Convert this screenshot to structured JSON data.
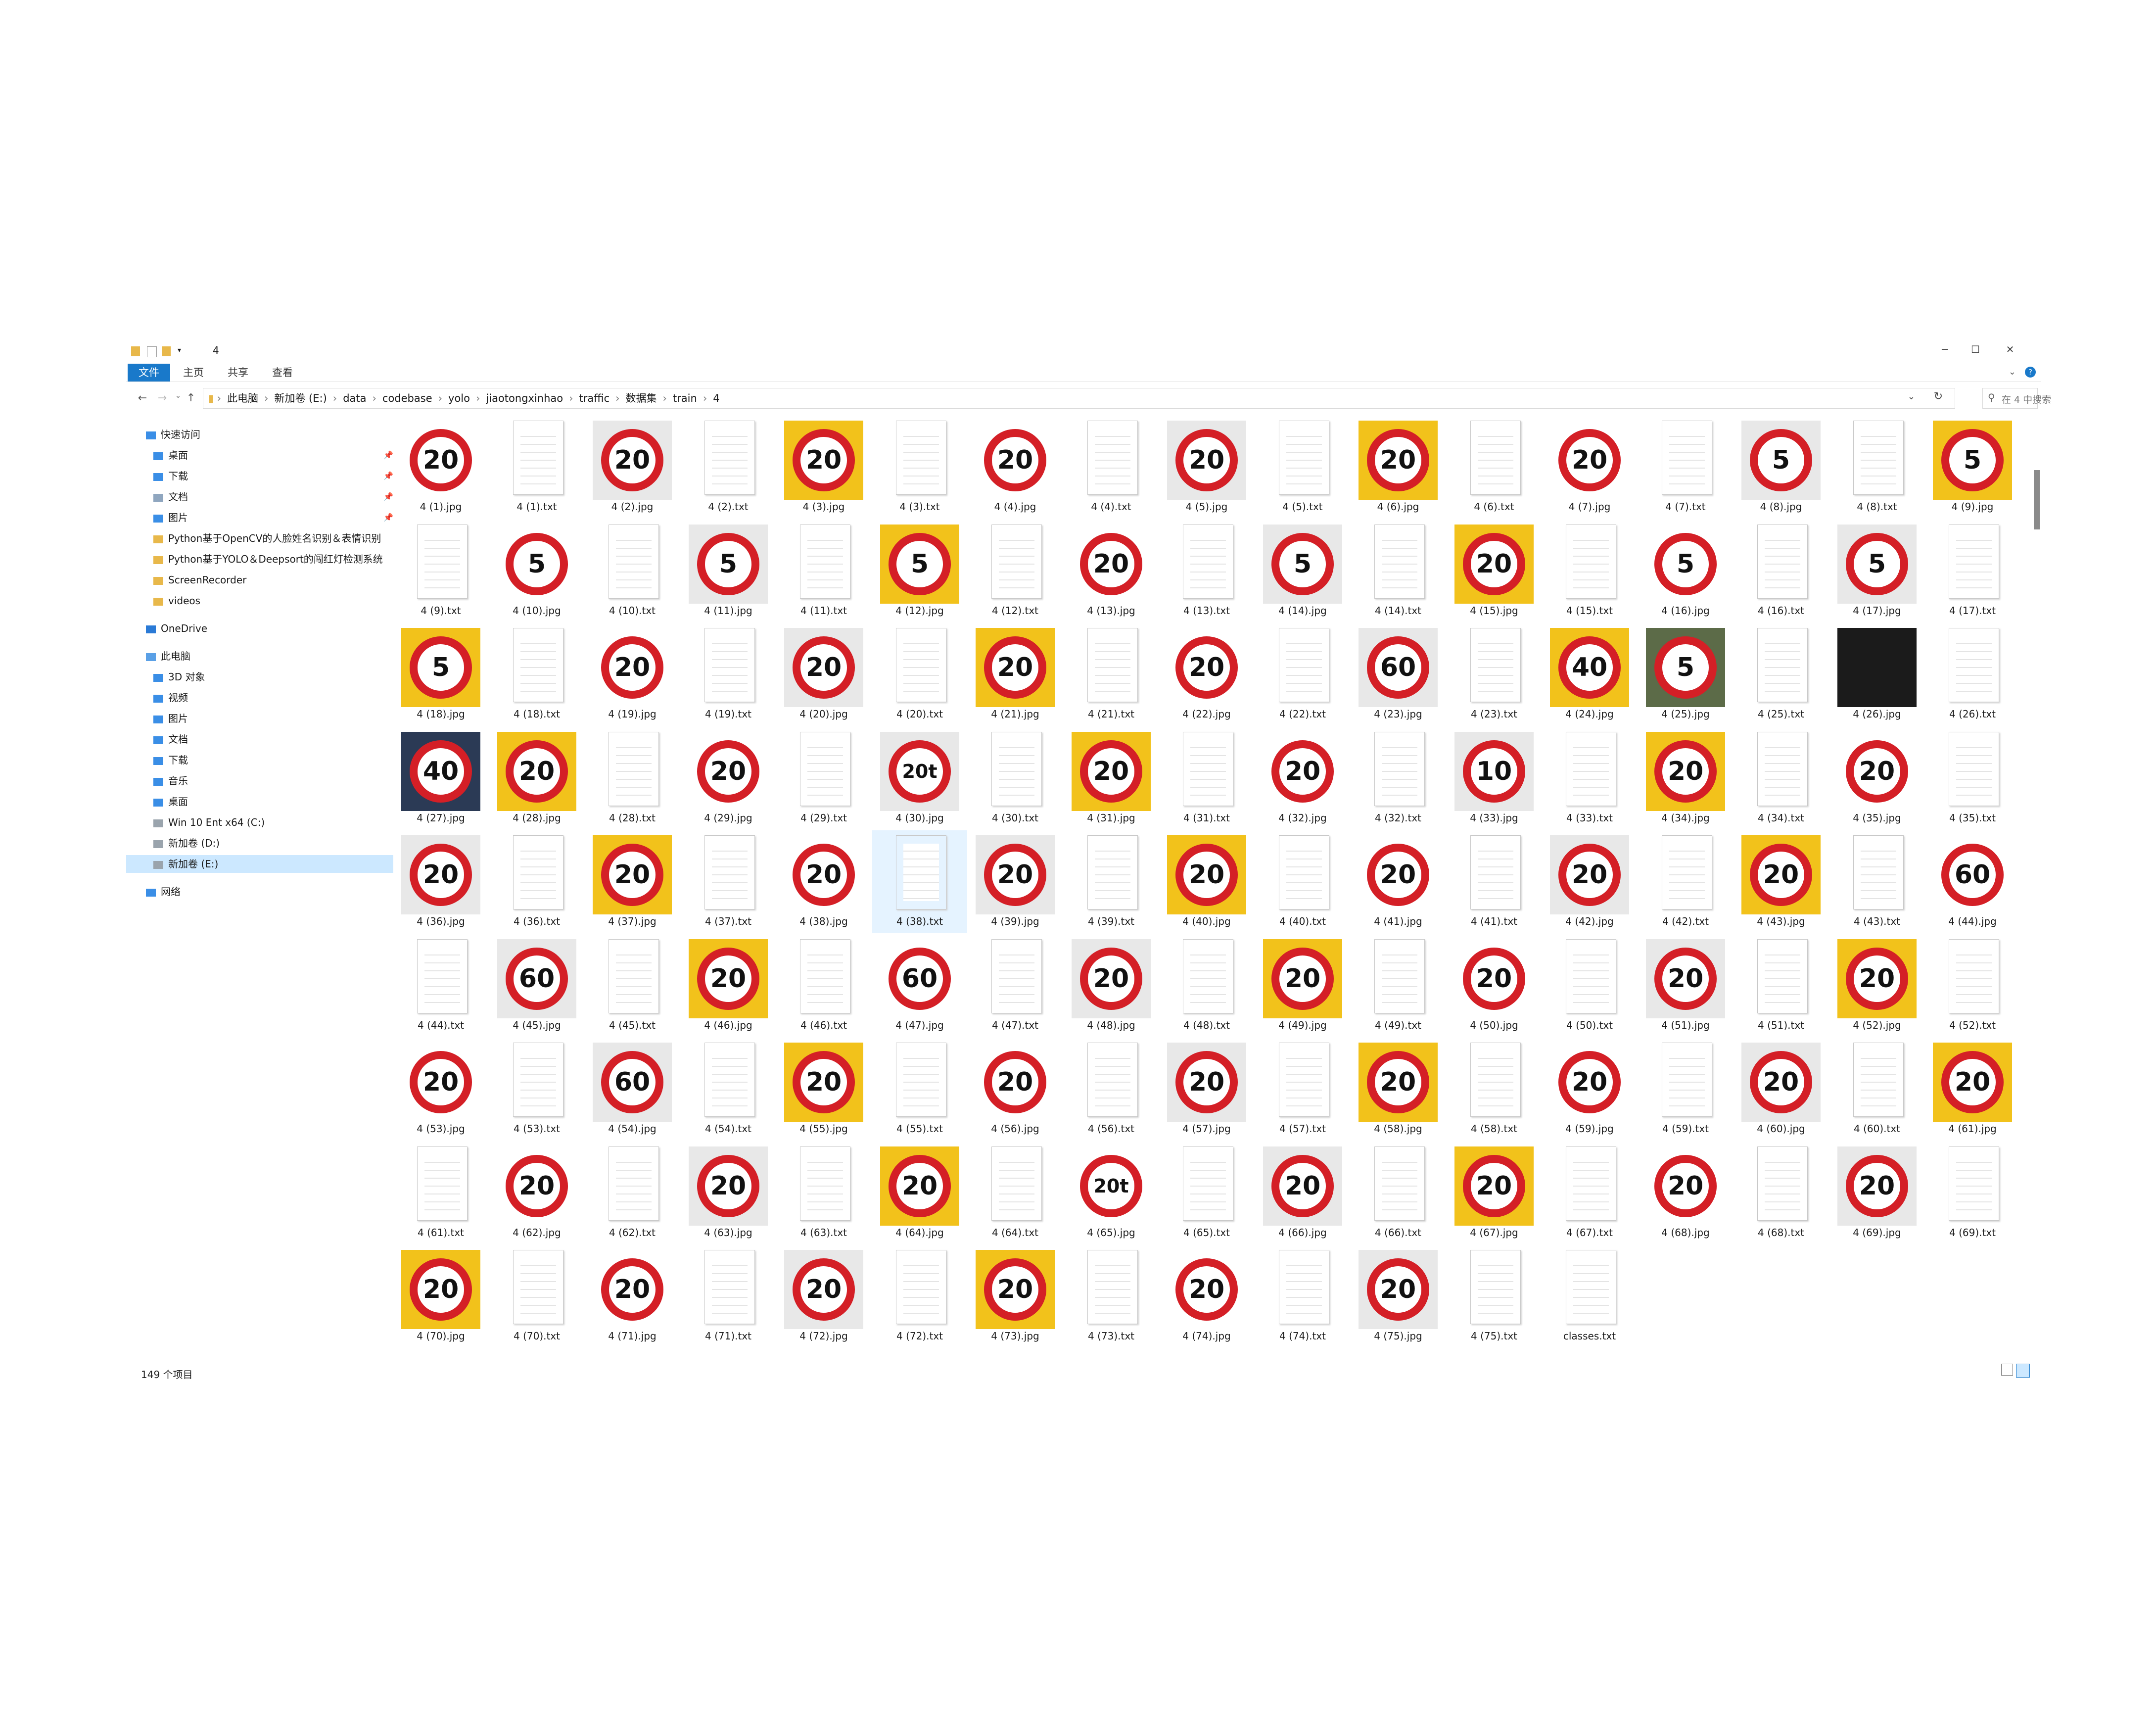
{
  "window": {
    "title": "4",
    "controls": {
      "minimize": "─",
      "maximize": "☐",
      "close": "✕"
    }
  },
  "ribbon": {
    "tabs": [
      "文件",
      "主页",
      "共享",
      "查看"
    ],
    "chevron": "⌄",
    "help": "?"
  },
  "address": {
    "crumbs": [
      "此电脑",
      "新加卷 (E:)",
      "data",
      "codebase",
      "yolo",
      "jiaotongxinhao",
      "traffic",
      "数据集",
      "train",
      "4"
    ],
    "search_placeholder": "在 4 中搜索"
  },
  "nav": {
    "quick_access": "快速访问",
    "quick_items": [
      "桌面",
      "下载",
      "文档",
      "图片",
      "Python基于OpenCV的人脸姓名识别＆表情识别",
      "Python基于YOLO＆Deepsort的闯红灯检测系统",
      "ScreenRecorder",
      "videos"
    ],
    "onedrive": "OneDrive",
    "this_pc": "此电脑",
    "pc_items": [
      "3D 对象",
      "视频",
      "图片",
      "文档",
      "下载",
      "音乐",
      "桌面",
      "Win 10 Ent x64 (C:)",
      "新加卷 (D:)",
      "新加卷 (E:)"
    ],
    "network": "网络"
  },
  "files": [
    {
      "name": "4 (1).jpg",
      "sign": "20"
    },
    {
      "name": "4 (1).txt"
    },
    {
      "name": "4 (2).jpg",
      "sign": "20"
    },
    {
      "name": "4 (2).txt"
    },
    {
      "name": "4 (3).jpg",
      "sign": "20"
    },
    {
      "name": "4 (3).txt"
    },
    {
      "name": "4 (4).jpg",
      "sign": "20"
    },
    {
      "name": "4 (4).txt"
    },
    {
      "name": "4 (5).jpg",
      "sign": "20"
    },
    {
      "name": "4 (5).txt"
    },
    {
      "name": "4 (6).jpg",
      "sign": "20"
    },
    {
      "name": "4 (6).txt"
    },
    {
      "name": "4 (7).jpg",
      "sign": "20"
    },
    {
      "name": "4 (7).txt"
    },
    {
      "name": "4 (8).jpg",
      "sign": "5"
    },
    {
      "name": "4 (8).txt"
    },
    {
      "name": "4 (9).jpg",
      "sign": "5"
    },
    {
      "name": "4 (9).txt"
    },
    {
      "name": "4 (10).jpg",
      "sign": "5"
    },
    {
      "name": "4 (10).txt"
    },
    {
      "name": "4 (11).jpg",
      "sign": "5"
    },
    {
      "name": "4 (11).txt"
    },
    {
      "name": "4 (12).jpg",
      "sign": "5"
    },
    {
      "name": "4 (12).txt"
    },
    {
      "name": "4 (13).jpg",
      "sign": "20"
    },
    {
      "name": "4 (13).txt"
    },
    {
      "name": "4 (14).jpg",
      "sign": "5"
    },
    {
      "name": "4 (14).txt"
    },
    {
      "name": "4 (15).jpg",
      "sign": "20"
    },
    {
      "name": "4 (15).txt"
    },
    {
      "name": "4 (16).jpg",
      "sign": "5"
    },
    {
      "name": "4 (16).txt"
    },
    {
      "name": "4 (17).jpg",
      "sign": "5"
    },
    {
      "name": "4 (17).txt"
    },
    {
      "name": "4 (18).jpg",
      "sign": "5"
    },
    {
      "name": "4 (18).txt"
    },
    {
      "name": "4 (19).jpg",
      "sign": "20"
    },
    {
      "name": "4 (19).txt"
    },
    {
      "name": "4 (20).jpg",
      "sign": "20"
    },
    {
      "name": "4 (20).txt"
    },
    {
      "name": "4 (21).jpg",
      "sign": "20"
    },
    {
      "name": "4 (21).txt"
    },
    {
      "name": "4 (22).jpg",
      "sign": "20"
    },
    {
      "name": "4 (22).txt"
    },
    {
      "name": "4 (23).jpg",
      "sign": "60"
    },
    {
      "name": "4 (23).txt"
    },
    {
      "name": "4 (24).jpg",
      "sign": "40"
    },
    {
      "name": "4 (25).jpg",
      "sign": "5"
    },
    {
      "name": "4 (25).txt"
    },
    {
      "name": "4 (26).jpg",
      "sign": ""
    },
    {
      "name": "4 (26).txt"
    },
    {
      "name": "4 (27).jpg",
      "sign": "40"
    },
    {
      "name": "4 (28).jpg",
      "sign": "20"
    },
    {
      "name": "4 (28).txt"
    },
    {
      "name": "4 (29).jpg",
      "sign": "20"
    },
    {
      "name": "4 (29).txt"
    },
    {
      "name": "4 (30).jpg",
      "sign": "20t"
    },
    {
      "name": "4 (30).txt"
    },
    {
      "name": "4 (31).jpg",
      "sign": "20"
    },
    {
      "name": "4 (31).txt"
    },
    {
      "name": "4 (32).jpg",
      "sign": "20"
    },
    {
      "name": "4 (32).txt"
    },
    {
      "name": "4 (33).jpg",
      "sign": "10"
    },
    {
      "name": "4 (33).txt"
    },
    {
      "name": "4 (34).jpg",
      "sign": "20"
    },
    {
      "name": "4 (34).txt"
    },
    {
      "name": "4 (35).jpg",
      "sign": "20"
    },
    {
      "name": "4 (35).txt"
    },
    {
      "name": "4 (36).jpg",
      "sign": "20"
    },
    {
      "name": "4 (36).txt"
    },
    {
      "name": "4 (37).jpg",
      "sign": "20"
    },
    {
      "name": "4 (37).txt"
    },
    {
      "name": "4 (38).jpg",
      "sign": "20"
    },
    {
      "name": "4 (38).txt",
      "selected": true
    },
    {
      "name": "4 (39).jpg",
      "sign": "20"
    },
    {
      "name": "4 (39).txt"
    },
    {
      "name": "4 (40).jpg",
      "sign": "20"
    },
    {
      "name": "4 (40).txt"
    },
    {
      "name": "4 (41).jpg",
      "sign": "20"
    },
    {
      "name": "4 (41).txt"
    },
    {
      "name": "4 (42).jpg",
      "sign": "20"
    },
    {
      "name": "4 (42).txt"
    },
    {
      "name": "4 (43).jpg",
      "sign": "20"
    },
    {
      "name": "4 (43).txt"
    },
    {
      "name": "4 (44).jpg",
      "sign": "60"
    },
    {
      "name": "4 (44).txt"
    },
    {
      "name": "4 (45).jpg",
      "sign": "60"
    },
    {
      "name": "4 (45).txt"
    },
    {
      "name": "4 (46).jpg",
      "sign": "20"
    },
    {
      "name": "4 (46).txt"
    },
    {
      "name": "4 (47).jpg",
      "sign": "60"
    },
    {
      "name": "4 (47).txt"
    },
    {
      "name": "4 (48).jpg",
      "sign": "20"
    },
    {
      "name": "4 (48).txt"
    },
    {
      "name": "4 (49).jpg",
      "sign": "20"
    },
    {
      "name": "4 (49).txt"
    },
    {
      "name": "4 (50).jpg",
      "sign": "20"
    },
    {
      "name": "4 (50).txt"
    },
    {
      "name": "4 (51).jpg",
      "sign": "20"
    },
    {
      "name": "4 (51).txt"
    },
    {
      "name": "4 (52).jpg",
      "sign": "20"
    },
    {
      "name": "4 (52).txt"
    },
    {
      "name": "4 (53).jpg",
      "sign": "20"
    },
    {
      "name": "4 (53).txt"
    },
    {
      "name": "4 (54).jpg",
      "sign": "60"
    },
    {
      "name": "4 (54).txt"
    },
    {
      "name": "4 (55).jpg",
      "sign": "20"
    },
    {
      "name": "4 (55).txt"
    },
    {
      "name": "4 (56).jpg",
      "sign": "20"
    },
    {
      "name": "4 (56).txt"
    },
    {
      "name": "4 (57).jpg",
      "sign": "20"
    },
    {
      "name": "4 (57).txt"
    },
    {
      "name": "4 (58).jpg",
      "sign": "20"
    },
    {
      "name": "4 (58).txt"
    },
    {
      "name": "4 (59).jpg",
      "sign": "20"
    },
    {
      "name": "4 (59).txt"
    },
    {
      "name": "4 (60).jpg",
      "sign": "20"
    },
    {
      "name": "4 (60).txt"
    },
    {
      "name": "4 (61).jpg",
      "sign": "20"
    },
    {
      "name": "4 (61).txt"
    },
    {
      "name": "4 (62).jpg",
      "sign": "20"
    },
    {
      "name": "4 (62).txt"
    },
    {
      "name": "4 (63).jpg",
      "sign": "20"
    },
    {
      "name": "4 (63).txt"
    },
    {
      "name": "4 (64).jpg",
      "sign": "20"
    },
    {
      "name": "4 (64).txt"
    },
    {
      "name": "4 (65).jpg",
      "sign": "20t"
    },
    {
      "name": "4 (65).txt"
    },
    {
      "name": "4 (66).jpg",
      "sign": "20"
    },
    {
      "name": "4 (66).txt"
    },
    {
      "name": "4 (67).jpg",
      "sign": "20"
    },
    {
      "name": "4 (67).txt"
    },
    {
      "name": "4 (68).jpg",
      "sign": "20"
    },
    {
      "name": "4 (68).txt"
    },
    {
      "name": "4 (69).jpg",
      "sign": "20"
    },
    {
      "name": "4 (69).txt"
    },
    {
      "name": "4 (70).jpg",
      "sign": "20"
    },
    {
      "name": "4 (70).txt"
    },
    {
      "name": "4 (71).jpg",
      "sign": "20"
    },
    {
      "name": "4 (71).txt"
    },
    {
      "name": "4 (72).jpg",
      "sign": "20"
    },
    {
      "name": "4 (72).txt"
    },
    {
      "name": "4 (73).jpg",
      "sign": "20"
    },
    {
      "name": "4 (73).txt"
    },
    {
      "name": "4 (74).jpg",
      "sign": "20"
    },
    {
      "name": "4 (74).txt"
    },
    {
      "name": "4 (75).jpg",
      "sign": "20"
    },
    {
      "name": "4 (75).txt"
    },
    {
      "name": "classes.txt"
    }
  ],
  "status": {
    "count": "149 个项目"
  }
}
